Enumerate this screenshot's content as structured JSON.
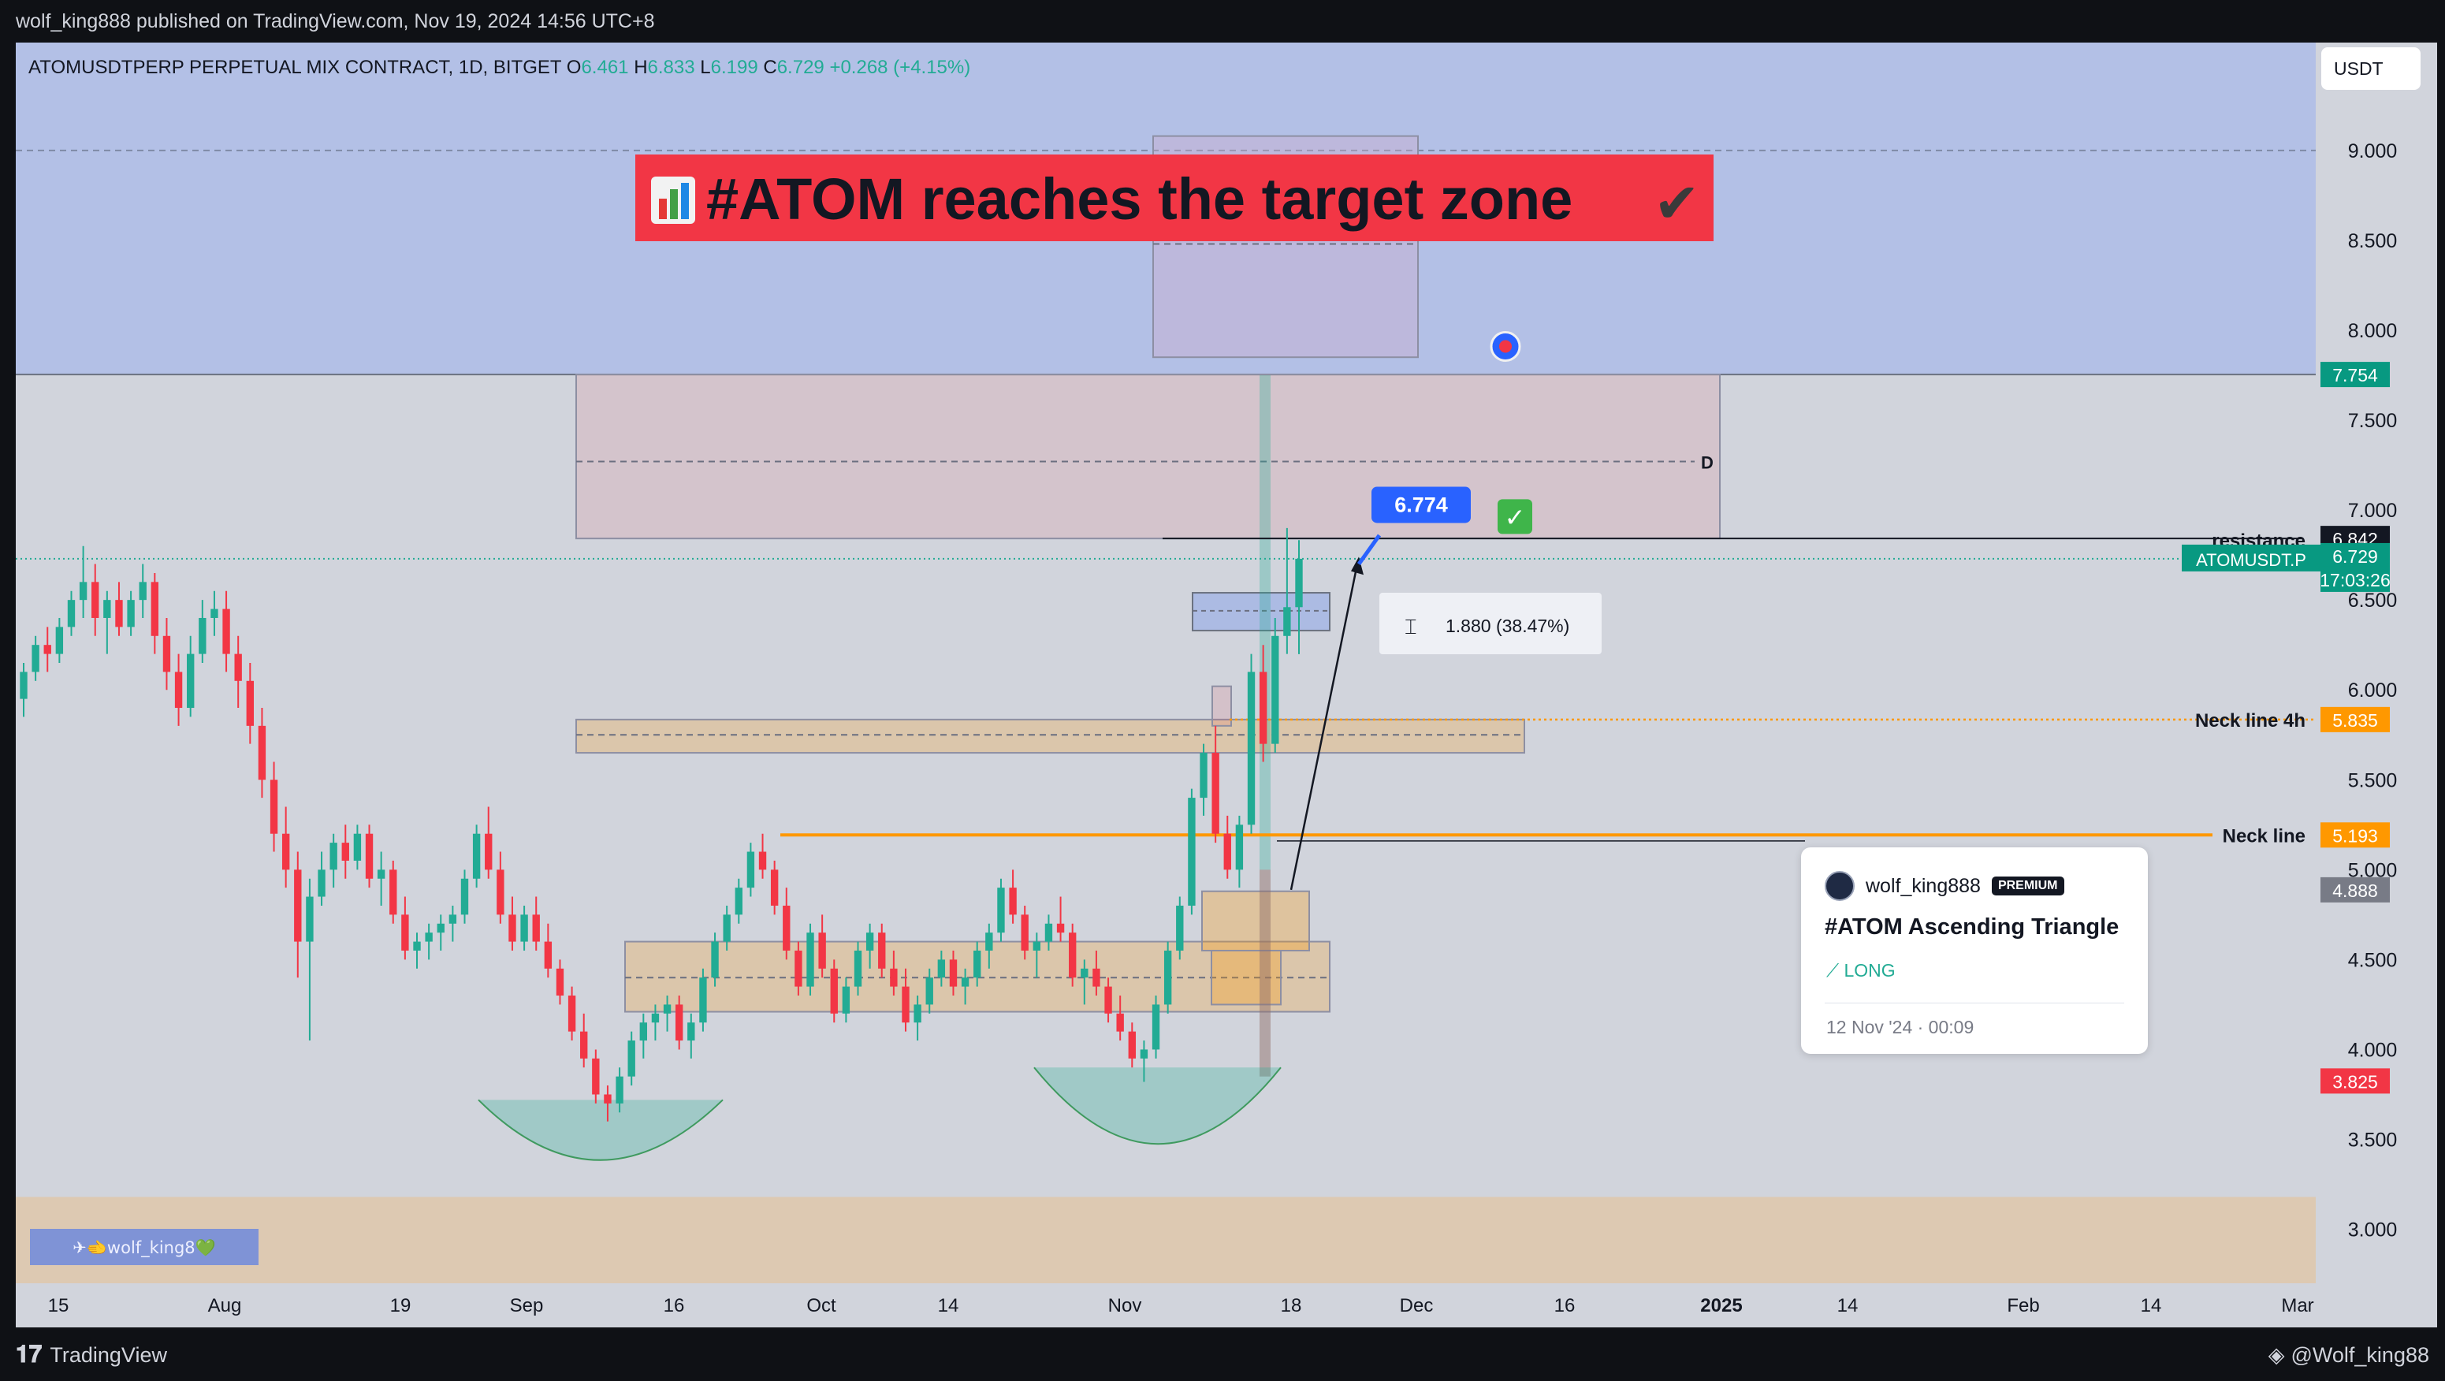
{
  "publish_line": "wolf_king888 published on TradingView.com, Nov 19, 2024 14:56 UTC+8",
  "symbol_line": {
    "name": "ATOMUSDTPERP PERPETUAL MIX CONTRACT, 1D, BITGET",
    "o_label": "O",
    "o": "6.461",
    "h_label": "H",
    "h": "6.833",
    "l_label": "L",
    "l": "6.199",
    "c_label": "C",
    "c": "6.729",
    "change": "+0.268 (+4.15%)"
  },
  "currency_button": "USDT",
  "colors": {
    "up": "#22ab94",
    "down": "#f23645",
    "orange": "#ff9800",
    "target_zone": "#b3c0e6",
    "banner": "#f23645",
    "label_blue": "#2962ff"
  },
  "banner": {
    "icon": "bar-chart-emoji-icon",
    "text": "#ATOM reaches the target zone",
    "check": "✔"
  },
  "annotations": {
    "target_price_label": "6.774",
    "measure_label": "1.880 (38.47%)",
    "d_label": "D",
    "resistance": "resistance",
    "neck_line_4h": "Neck line 4h",
    "neck_line": "Neck line",
    "signature": "✈🫲wolf_king8💚",
    "check_emoji": "✅"
  },
  "price_labels": [
    {
      "text": "7.754",
      "color": "#089981"
    },
    {
      "text": "6.842",
      "color": "#131722"
    },
    {
      "text": "6.729",
      "color": "#089981"
    },
    {
      "text": "17:03:26",
      "color": "#089981"
    },
    {
      "text": "ATOMUSDT.P",
      "color": "#089981"
    },
    {
      "text": "5.835",
      "color": "#ff9800"
    },
    {
      "text": "5.193",
      "color": "#ff9800"
    },
    {
      "text": "4.888",
      "color": "#787b86"
    },
    {
      "text": "3.825",
      "color": "#f23645"
    }
  ],
  "idea_card": {
    "author": "wolf_king888",
    "badge": "PREMIUM",
    "title": "#ATOM Ascending Triangle",
    "direction": "LONG",
    "date": "12 Nov '24 · 00:09"
  },
  "footer": {
    "brand": "TradingView",
    "handle": "@Wolf_king88"
  },
  "chart_data": {
    "type": "candlestick",
    "symbol": "ATOMUSDT.P",
    "interval": "1D",
    "ylim": [
      2.7,
      9.6
    ],
    "y_ticks": [
      "3.000",
      "3.500",
      "4.000",
      "4.500",
      "5.000",
      "5.500",
      "6.000",
      "6.500",
      "7.000",
      "7.500",
      "8.000",
      "8.500",
      "9.000"
    ],
    "x_ticks": [
      "15",
      "Aug",
      "19",
      "Sep",
      "16",
      "Oct",
      "14",
      "Nov",
      "18",
      "Dec",
      "16",
      "2025",
      "14",
      "Feb",
      "14",
      "Mar"
    ],
    "last_close": 6.729,
    "zones": [
      {
        "name": "target-zone",
        "from": 7.754,
        "to": 9.6
      },
      {
        "name": "supply-zone",
        "from": 6.842,
        "to": 7.754,
        "midline": 7.27
      },
      {
        "name": "neck-4h-zone",
        "from": 5.65,
        "to": 5.835
      },
      {
        "name": "base-zone",
        "from": 4.21,
        "to": 4.6
      },
      {
        "name": "bottom-zone",
        "from": 2.7,
        "to": 3.18
      }
    ],
    "levels": [
      {
        "name": "resistance",
        "value": 6.842
      },
      {
        "name": "neck-line-4h",
        "value": 5.835
      },
      {
        "name": "neck-line",
        "value": 5.193
      }
    ],
    "measurement": {
      "from": 4.888,
      "to": 6.774,
      "change": 1.88,
      "change_pct": 38.47
    },
    "candles": [
      [
        5.95,
        6.15,
        5.85,
        6.1
      ],
      [
        6.1,
        6.3,
        6.05,
        6.25
      ],
      [
        6.25,
        6.35,
        6.1,
        6.2
      ],
      [
        6.2,
        6.4,
        6.15,
        6.35
      ],
      [
        6.35,
        6.55,
        6.3,
        6.5
      ],
      [
        6.5,
        6.8,
        6.4,
        6.6
      ],
      [
        6.6,
        6.7,
        6.3,
        6.4
      ],
      [
        6.4,
        6.55,
        6.2,
        6.5
      ],
      [
        6.5,
        6.6,
        6.3,
        6.35
      ],
      [
        6.35,
        6.55,
        6.3,
        6.5
      ],
      [
        6.5,
        6.7,
        6.4,
        6.6
      ],
      [
        6.6,
        6.65,
        6.2,
        6.3
      ],
      [
        6.3,
        6.4,
        6.0,
        6.1
      ],
      [
        6.1,
        6.2,
        5.8,
        5.9
      ],
      [
        5.9,
        6.3,
        5.85,
        6.2
      ],
      [
        6.2,
        6.5,
        6.15,
        6.4
      ],
      [
        6.4,
        6.55,
        6.3,
        6.45
      ],
      [
        6.45,
        6.55,
        6.1,
        6.2
      ],
      [
        6.2,
        6.3,
        5.9,
        6.05
      ],
      [
        6.05,
        6.15,
        5.7,
        5.8
      ],
      [
        5.8,
        5.9,
        5.4,
        5.5
      ],
      [
        5.5,
        5.6,
        5.1,
        5.2
      ],
      [
        5.2,
        5.35,
        4.9,
        5.0
      ],
      [
        5.0,
        5.1,
        4.4,
        4.6
      ],
      [
        4.6,
        4.95,
        4.05,
        4.85
      ],
      [
        4.85,
        5.1,
        4.8,
        5.0
      ],
      [
        5.0,
        5.2,
        4.9,
        5.15
      ],
      [
        5.15,
        5.25,
        4.95,
        5.05
      ],
      [
        5.05,
        5.25,
        5.0,
        5.2
      ],
      [
        5.2,
        5.25,
        4.9,
        4.95
      ],
      [
        4.95,
        5.1,
        4.8,
        5.0
      ],
      [
        5.0,
        5.05,
        4.7,
        4.75
      ],
      [
        4.75,
        4.85,
        4.5,
        4.55
      ],
      [
        4.55,
        4.65,
        4.45,
        4.6
      ],
      [
        4.6,
        4.7,
        4.5,
        4.65
      ],
      [
        4.65,
        4.75,
        4.55,
        4.7
      ],
      [
        4.7,
        4.8,
        4.6,
        4.75
      ],
      [
        4.75,
        5.0,
        4.7,
        4.95
      ],
      [
        4.95,
        5.25,
        4.9,
        5.2
      ],
      [
        5.2,
        5.35,
        4.95,
        5.0
      ],
      [
        5.0,
        5.1,
        4.7,
        4.75
      ],
      [
        4.75,
        4.85,
        4.55,
        4.6
      ],
      [
        4.6,
        4.8,
        4.55,
        4.75
      ],
      [
        4.75,
        4.85,
        4.55,
        4.6
      ],
      [
        4.6,
        4.7,
        4.4,
        4.45
      ],
      [
        4.45,
        4.5,
        4.25,
        4.3
      ],
      [
        4.3,
        4.35,
        4.05,
        4.1
      ],
      [
        4.1,
        4.2,
        3.9,
        3.95
      ],
      [
        3.95,
        4.0,
        3.7,
        3.75
      ],
      [
        3.75,
        3.8,
        3.6,
        3.7
      ],
      [
        3.7,
        3.9,
        3.65,
        3.85
      ],
      [
        3.85,
        4.1,
        3.8,
        4.05
      ],
      [
        4.05,
        4.2,
        3.95,
        4.15
      ],
      [
        4.15,
        4.25,
        4.05,
        4.2
      ],
      [
        4.2,
        4.3,
        4.1,
        4.25
      ],
      [
        4.25,
        4.3,
        4.0,
        4.05
      ],
      [
        4.05,
        4.2,
        3.95,
        4.15
      ],
      [
        4.15,
        4.45,
        4.1,
        4.4
      ],
      [
        4.4,
        4.65,
        4.35,
        4.6
      ],
      [
        4.6,
        4.8,
        4.55,
        4.75
      ],
      [
        4.75,
        4.95,
        4.7,
        4.9
      ],
      [
        4.9,
        5.15,
        4.85,
        5.1
      ],
      [
        5.1,
        5.2,
        4.95,
        5.0
      ],
      [
        5.0,
        5.05,
        4.75,
        4.8
      ],
      [
        4.8,
        4.9,
        4.5,
        4.55
      ],
      [
        4.55,
        4.6,
        4.3,
        4.35
      ],
      [
        4.35,
        4.7,
        4.3,
        4.65
      ],
      [
        4.65,
        4.75,
        4.4,
        4.45
      ],
      [
        4.45,
        4.5,
        4.15,
        4.2
      ],
      [
        4.2,
        4.4,
        4.15,
        4.35
      ],
      [
        4.35,
        4.6,
        4.3,
        4.55
      ],
      [
        4.55,
        4.7,
        4.45,
        4.65
      ],
      [
        4.65,
        4.7,
        4.4,
        4.45
      ],
      [
        4.45,
        4.55,
        4.3,
        4.35
      ],
      [
        4.35,
        4.45,
        4.1,
        4.15
      ],
      [
        4.15,
        4.3,
        4.05,
        4.25
      ],
      [
        4.25,
        4.45,
        4.2,
        4.4
      ],
      [
        4.4,
        4.55,
        4.35,
        4.5
      ],
      [
        4.5,
        4.55,
        4.3,
        4.35
      ],
      [
        4.35,
        4.45,
        4.25,
        4.4
      ],
      [
        4.4,
        4.6,
        4.35,
        4.55
      ],
      [
        4.55,
        4.7,
        4.45,
        4.65
      ],
      [
        4.65,
        4.95,
        4.6,
        4.9
      ],
      [
        4.9,
        5.0,
        4.7,
        4.75
      ],
      [
        4.75,
        4.8,
        4.5,
        4.55
      ],
      [
        4.55,
        4.65,
        4.4,
        4.6
      ],
      [
        4.6,
        4.75,
        4.55,
        4.7
      ],
      [
        4.7,
        4.85,
        4.6,
        4.65
      ],
      [
        4.65,
        4.7,
        4.35,
        4.4
      ],
      [
        4.4,
        4.5,
        4.25,
        4.45
      ],
      [
        4.45,
        4.55,
        4.3,
        4.35
      ],
      [
        4.35,
        4.4,
        4.15,
        4.2
      ],
      [
        4.2,
        4.3,
        4.05,
        4.1
      ],
      [
        4.1,
        4.15,
        3.9,
        3.95
      ],
      [
        3.95,
        4.05,
        3.82,
        4.0
      ],
      [
        4.0,
        4.3,
        3.95,
        4.25
      ],
      [
        4.25,
        4.6,
        4.2,
        4.55
      ],
      [
        4.55,
        4.85,
        4.5,
        4.8
      ],
      [
        4.8,
        5.45,
        4.75,
        5.4
      ],
      [
        5.4,
        5.7,
        5.3,
        5.65
      ],
      [
        5.65,
        5.8,
        5.15,
        5.2
      ],
      [
        5.2,
        5.3,
        4.95,
        5.0
      ],
      [
        5.0,
        5.3,
        4.9,
        5.25
      ],
      [
        5.25,
        6.2,
        5.2,
        6.1
      ],
      [
        6.1,
        6.25,
        5.6,
        5.7
      ],
      [
        5.7,
        6.4,
        5.65,
        6.3
      ],
      [
        6.3,
        6.9,
        6.2,
        6.46
      ],
      [
        6.46,
        6.833,
        6.199,
        6.729
      ]
    ]
  }
}
